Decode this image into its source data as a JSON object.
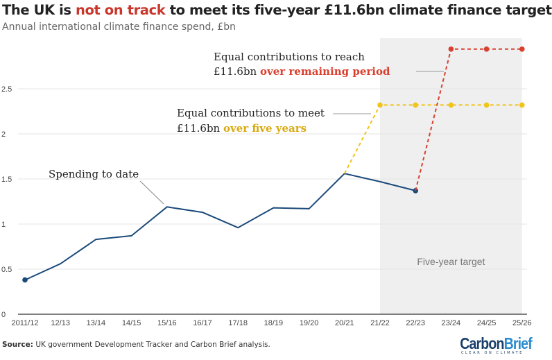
{
  "header": {
    "title_pre": "The UK is ",
    "title_highlight": "not on track",
    "title_post": " to meet its five-year £11.6bn climate finance target",
    "subtitle": "Annual international climate finance spend, £bn"
  },
  "chart_data": {
    "type": "line",
    "title": "The UK is not on track to meet its five-year £11.6bn climate finance target",
    "subtitle": "Annual international climate finance spend, £bn",
    "categories": [
      "2011/12",
      "12/13",
      "13/14",
      "14/15",
      "15/16",
      "16/17",
      "17/18",
      "18/19",
      "19/20",
      "20/21",
      "21/22",
      "22/23",
      "23/24",
      "24/25",
      "25/26"
    ],
    "yticks": [
      0,
      0.5,
      1,
      1.5,
      2,
      2.5
    ],
    "yticklabels": [
      "0",
      "0.5",
      "1",
      "1.5",
      "2",
      "2.5"
    ],
    "ylim": [
      0,
      3
    ],
    "grid": true,
    "series": [
      {
        "key": "spending",
        "color": "#1b4a7a",
        "dashed": false,
        "values": [
          0.38,
          0.56,
          0.83,
          0.87,
          1.19,
          1.13,
          0.96,
          1.18,
          1.17,
          1.56,
          1.47,
          1.37,
          null,
          null,
          null
        ],
        "markers": [
          0,
          11
        ]
      },
      {
        "key": "five_years",
        "color": "#f0c419",
        "dashed": true,
        "values": [
          null,
          null,
          null,
          null,
          null,
          null,
          null,
          null,
          null,
          1.56,
          2.32,
          2.32,
          2.32,
          2.32,
          2.32
        ],
        "markers": [
          10,
          11,
          12,
          13,
          14
        ]
      },
      {
        "key": "remaining",
        "color": "#d9402f",
        "dashed": true,
        "values": [
          null,
          null,
          null,
          null,
          null,
          null,
          null,
          null,
          null,
          null,
          null,
          1.37,
          2.94,
          2.94,
          2.94
        ],
        "markers": [
          12,
          13,
          14
        ]
      }
    ],
    "shaded_region": {
      "from": "21/22",
      "to": "25/26",
      "label": "Five-year target",
      "color": "#efefef"
    },
    "annotations": {
      "spending": "Spending to date",
      "five_years_line1": "Equal contributions to meet",
      "five_years_line2_pre": "£11.6bn ",
      "five_years_line2_hl": "over five years",
      "remaining_line1": "Equal contributions to reach",
      "remaining_line2_pre": "£11.6bn ",
      "remaining_line2_hl": "over remaining period"
    }
  },
  "footer": {
    "source_label": "Source:",
    "source_text": " UK government Development Tracker and Carbon Brief analysis.",
    "logo_carbon": "Carbon",
    "logo_brief": "Brief",
    "logo_tagline": "CLEAR ON CLIMATE"
  }
}
